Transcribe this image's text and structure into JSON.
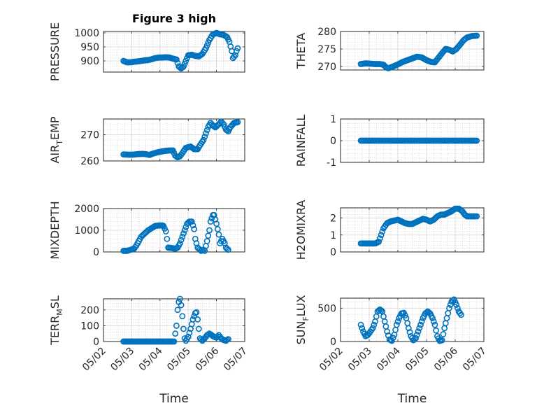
{
  "chart_data": [
    {
      "name": "PRESSURE",
      "type": "scatter",
      "title": "Figure 3 high",
      "ylabel": "PRESSURE",
      "xlabel": "",
      "ylim": [
        860,
        1005
      ],
      "yticks": [
        900,
        950,
        1000
      ],
      "points": [
        [
          "05/02 17:00",
          900
        ],
        [
          "05/02 20:00",
          895
        ],
        [
          "05/02 23:00",
          895
        ],
        [
          "05/03 02:00",
          897
        ],
        [
          "05/03 05:00",
          898
        ],
        [
          "05/03 08:00",
          900
        ],
        [
          "05/03 11:00",
          902
        ],
        [
          "05/03 14:00",
          903
        ],
        [
          "05/03 17:00",
          906
        ],
        [
          "05/03 20:00",
          910
        ],
        [
          "05/03 23:00",
          912
        ],
        [
          "05/04 02:00",
          912
        ],
        [
          "05/04 05:00",
          913
        ],
        [
          "05/04 08:00",
          912
        ],
        [
          "05/04 11:00",
          908
        ],
        [
          "05/04 14:00",
          905
        ],
        [
          "05/04 16:00",
          880
        ],
        [
          "05/04 18:00",
          873
        ],
        [
          "05/04 20:00",
          880
        ],
        [
          "05/04 22:00",
          900
        ],
        [
          "05/05 00:00",
          920
        ],
        [
          "05/05 03:00",
          922
        ],
        [
          "05/05 06:00",
          918
        ],
        [
          "05/05 09:00",
          916
        ],
        [
          "05/05 12:00",
          925
        ],
        [
          "05/05 15:00",
          945
        ],
        [
          "05/05 18:00",
          975
        ],
        [
          "05/05 21:00",
          995
        ],
        [
          "05/06 00:00",
          1000
        ],
        [
          "05/06 03:00",
          995
        ],
        [
          "05/06 06:00",
          993
        ],
        [
          "05/06 09:00",
          985
        ],
        [
          "05/06 11:00",
          968
        ],
        [
          "05/06 13:00",
          935
        ],
        [
          "05/06 14:00",
          910
        ],
        [
          "05/06 16:00",
          920
        ],
        [
          "05/06 17:00",
          935
        ],
        [
          "05/06 18:00",
          945
        ]
      ]
    },
    {
      "name": "THETA",
      "type": "scatter",
      "title": "",
      "ylabel": "THETA",
      "xlabel": "",
      "ylim": [
        269,
        280
      ],
      "yticks": [
        270,
        275,
        280
      ],
      "points": [
        [
          "05/02 17:00",
          270.7
        ],
        [
          "05/02 21:00",
          270.9
        ],
        [
          "05/03 01:00",
          270.8
        ],
        [
          "05/03 05:00",
          270.7
        ],
        [
          "05/03 09:00",
          270.7
        ],
        [
          "05/03 12:00",
          270.5
        ],
        [
          "05/03 14:00",
          269.8
        ],
        [
          "05/03 16:00",
          269.5
        ],
        [
          "05/03 20:00",
          270.0
        ],
        [
          "05/04 00:00",
          270.6
        ],
        [
          "05/04 04:00",
          271.3
        ],
        [
          "05/04 08:00",
          271.8
        ],
        [
          "05/04 12:00",
          272.3
        ],
        [
          "05/04 16:00",
          272.8
        ],
        [
          "05/04 20:00",
          272.6
        ],
        [
          "05/05 00:00",
          271.8
        ],
        [
          "05/05 04:00",
          271.3
        ],
        [
          "05/05 07:00",
          271.2
        ],
        [
          "05/05 10:00",
          272.5
        ],
        [
          "05/05 13:00",
          273.8
        ],
        [
          "05/05 16:00",
          275.0
        ],
        [
          "05/05 19:00",
          274.8
        ],
        [
          "05/05 22:00",
          274.3
        ],
        [
          "05/06 01:00",
          275.0
        ],
        [
          "05/06 04:00",
          276.2
        ],
        [
          "05/06 07:00",
          277.5
        ],
        [
          "05/06 10:00",
          278.3
        ],
        [
          "05/06 14:00",
          278.7
        ],
        [
          "05/06 18:00",
          278.8
        ]
      ]
    },
    {
      "name": "AIR_TEMP",
      "type": "scatter",
      "title": "",
      "ylabel": "AIR_TEMP",
      "xlabel": "",
      "ylim": [
        260,
        276
      ],
      "yticks": [
        260,
        270
      ],
      "points": [
        [
          "05/02 17:00",
          262.5
        ],
        [
          "05/02 21:00",
          262.4
        ],
        [
          "05/03 01:00",
          262.4
        ],
        [
          "05/03 05:00",
          262.6
        ],
        [
          "05/03 09:00",
          262.7
        ],
        [
          "05/03 12:00",
          262.6
        ],
        [
          "05/03 15:00",
          262.3
        ],
        [
          "05/03 18:00",
          262.8
        ],
        [
          "05/03 21:00",
          263.2
        ],
        [
          "05/04 00:00",
          263.5
        ],
        [
          "05/04 04:00",
          263.8
        ],
        [
          "05/04 08:00",
          264.0
        ],
        [
          "05/04 11:00",
          264.0
        ],
        [
          "05/04 13:00",
          262.0
        ],
        [
          "05/04 15:00",
          261.4
        ],
        [
          "05/04 17:00",
          261.8
        ],
        [
          "05/04 19:00",
          263.0
        ],
        [
          "05/04 22:00",
          265.0
        ],
        [
          "05/05 02:00",
          265.5
        ],
        [
          "05/05 05:00",
          264.5
        ],
        [
          "05/05 08:00",
          264.5
        ],
        [
          "05/05 10:00",
          266.0
        ],
        [
          "05/05 13:00",
          268.0
        ],
        [
          "05/05 15:00",
          270.5
        ],
        [
          "05/05 17:00",
          273.0
        ],
        [
          "05/05 19:00",
          274.5
        ],
        [
          "05/05 21:00",
          273.5
        ],
        [
          "05/05 23:00",
          272.8
        ],
        [
          "05/06 02:00",
          274.0
        ],
        [
          "05/06 04:00",
          275.0
        ],
        [
          "05/06 06:00",
          274.0
        ],
        [
          "05/06 08:00",
          272.0
        ],
        [
          "05/06 10:00",
          271.3
        ],
        [
          "05/06 12:00",
          273.0
        ],
        [
          "05/06 15:00",
          274.5
        ],
        [
          "05/06 18:00",
          274.8
        ]
      ]
    },
    {
      "name": "RAINFALL",
      "type": "scatter",
      "title": "",
      "ylabel": "RAINFALL",
      "xlabel": "",
      "ylim": [
        -1,
        1
      ],
      "yticks": [
        -1,
        0,
        1
      ],
      "points": [
        [
          "05/02 17:00",
          0
        ],
        [
          "05/03 00:00",
          0
        ],
        [
          "05/03 08:00",
          0
        ],
        [
          "05/03 16:00",
          0
        ],
        [
          "05/04 00:00",
          0
        ],
        [
          "05/04 08:00",
          0
        ],
        [
          "05/04 16:00",
          0
        ],
        [
          "05/05 00:00",
          0
        ],
        [
          "05/05 08:00",
          0
        ],
        [
          "05/05 16:00",
          0
        ],
        [
          "05/06 00:00",
          0
        ],
        [
          "05/06 08:00",
          0
        ],
        [
          "05/06 16:00",
          0
        ],
        [
          "05/06 18:00",
          0
        ]
      ]
    },
    {
      "name": "MIXDEPTH",
      "type": "scatter",
      "title": "",
      "ylabel": "MIXDEPTH",
      "xlabel": "",
      "ylim": [
        0,
        2000
      ],
      "yticks": [
        0,
        1000,
        2000
      ],
      "points": [
        [
          "05/02 17:00",
          50
        ],
        [
          "05/02 20:00",
          50
        ],
        [
          "05/02 23:00",
          100
        ],
        [
          "05/03 02:00",
          150
        ],
        [
          "05/03 04:00",
          300
        ],
        [
          "05/03 06:00",
          500
        ],
        [
          "05/03 08:00",
          700
        ],
        [
          "05/03 11:00",
          850
        ],
        [
          "05/03 14:00",
          1000
        ],
        [
          "05/03 17:00",
          1100
        ],
        [
          "05/03 20:00",
          1200
        ],
        [
          "05/03 23:00",
          1220
        ],
        [
          "05/04 02:00",
          1220
        ],
        [
          "05/04 03:00",
          1200
        ],
        [
          "05/04 05:00",
          950
        ],
        [
          "05/04 06:00",
          600
        ],
        [
          "05/04 07:00",
          200
        ],
        [
          "05/04 10:00",
          180
        ],
        [
          "05/04 13:00",
          150
        ],
        [
          "05/04 15:00",
          200
        ],
        [
          "05/04 17:00",
          400
        ],
        [
          "05/04 19:00",
          700
        ],
        [
          "05/04 21:00",
          1000
        ],
        [
          "05/04 23:00",
          1300
        ],
        [
          "05/05 01:00",
          1400
        ],
        [
          "05/05 03:00",
          1400
        ],
        [
          "05/05 05:00",
          1050
        ],
        [
          "05/05 06:00",
          600
        ],
        [
          "05/05 08:00",
          200
        ],
        [
          "05/05 11:00",
          50
        ],
        [
          "05/05 13:00",
          100
        ],
        [
          "05/05 14:00",
          50
        ],
        [
          "05/05 16:00",
          500
        ],
        [
          "05/05 18:00",
          1000
        ],
        [
          "05/05 19:00",
          1400
        ],
        [
          "05/05 21:00",
          1700
        ],
        [
          "05/05 22:00",
          1700
        ],
        [
          "05/06 00:00",
          1300
        ],
        [
          "05/06 02:00",
          800
        ],
        [
          "05/06 03:00",
          400
        ],
        [
          "05/06 05:00",
          600
        ],
        [
          "05/06 07:00",
          400
        ],
        [
          "05/06 08:00",
          200
        ],
        [
          "05/06 10:00",
          100
        ]
      ]
    },
    {
      "name": "H2OMIXRA",
      "type": "scatter",
      "title": "",
      "ylabel": "H2OMIXRA",
      "xlabel": "",
      "ylim": [
        0,
        2.6
      ],
      "yticks": [
        0,
        1,
        2
      ],
      "points": [
        [
          "05/02 17:00",
          0.5
        ],
        [
          "05/02 21:00",
          0.5
        ],
        [
          "05/03 01:00",
          0.5
        ],
        [
          "05/03 05:00",
          0.5
        ],
        [
          "05/03 08:00",
          0.6
        ],
        [
          "05/03 10:00",
          1.0
        ],
        [
          "05/03 12:00",
          1.4
        ],
        [
          "05/03 15:00",
          1.7
        ],
        [
          "05/03 18:00",
          1.8
        ],
        [
          "05/03 21:00",
          1.85
        ],
        [
          "05/04 00:00",
          1.9
        ],
        [
          "05/04 03:00",
          1.8
        ],
        [
          "05/04 06:00",
          1.7
        ],
        [
          "05/04 09:00",
          1.65
        ],
        [
          "05/04 12:00",
          1.65
        ],
        [
          "05/04 15:00",
          1.75
        ],
        [
          "05/04 18:00",
          1.85
        ],
        [
          "05/04 21:00",
          1.95
        ],
        [
          "05/05 00:00",
          1.9
        ],
        [
          "05/05 03:00",
          1.8
        ],
        [
          "05/05 06:00",
          1.9
        ],
        [
          "05/05 09:00",
          2.1
        ],
        [
          "05/05 12:00",
          2.2
        ],
        [
          "05/05 15:00",
          2.2
        ],
        [
          "05/05 18:00",
          2.3
        ],
        [
          "05/05 21:00",
          2.4
        ],
        [
          "05/06 00:00",
          2.55
        ],
        [
          "05/06 03:00",
          2.55
        ],
        [
          "05/06 06:00",
          2.4
        ],
        [
          "05/06 08:00",
          2.2
        ],
        [
          "05/06 10:00",
          2.1
        ],
        [
          "05/06 14:00",
          2.1
        ],
        [
          "05/06 18:00",
          2.1
        ]
      ]
    },
    {
      "name": "TERR_MSL",
      "type": "scatter",
      "title": "",
      "ylabel": "TERR_MSL",
      "xlabel": "Time",
      "ylim": [
        0,
        270
      ],
      "yticks": [
        0,
        100,
        200
      ],
      "points": [
        [
          "05/02 17:00",
          0
        ],
        [
          "05/03 00:00",
          0
        ],
        [
          "05/03 08:00",
          0
        ],
        [
          "05/03 16:00",
          0
        ],
        [
          "05/04 00:00",
          0
        ],
        [
          "05/04 08:00",
          0
        ],
        [
          "05/04 12:00",
          0
        ],
        [
          "05/04 14:00",
          100
        ],
        [
          "05/04 15:00",
          200
        ],
        [
          "05/04 16:00",
          250
        ],
        [
          "05/04 17:00",
          270
        ],
        [
          "05/04 18:00",
          230
        ],
        [
          "05/04 19:00",
          160
        ],
        [
          "05/04 20:00",
          80
        ],
        [
          "05/04 21:00",
          20
        ],
        [
          "05/04 22:00",
          5
        ],
        [
          "05/05 00:00",
          30
        ],
        [
          "05/05 02:00",
          80
        ],
        [
          "05/05 04:00",
          140
        ],
        [
          "05/05 06:00",
          180
        ],
        [
          "05/05 07:00",
          185
        ],
        [
          "05/05 08:00",
          140
        ],
        [
          "05/05 09:00",
          80
        ],
        [
          "05/05 10:00",
          20
        ],
        [
          "05/05 12:00",
          5
        ],
        [
          "05/05 14:00",
          20
        ],
        [
          "05/05 16:00",
          40
        ],
        [
          "05/05 18:00",
          50
        ],
        [
          "05/05 20:00",
          40
        ],
        [
          "05/05 22:00",
          30
        ],
        [
          "05/06 00:00",
          25
        ],
        [
          "05/06 02:00",
          40
        ],
        [
          "05/06 04:00",
          20
        ],
        [
          "05/06 06:00",
          10
        ],
        [
          "05/06 08:00",
          5
        ],
        [
          "05/06 10:00",
          15
        ]
      ]
    },
    {
      "name": "SUN_FLUX",
      "type": "scatter",
      "title": "",
      "ylabel": "SUN_FLUX",
      "xlabel": "Time",
      "ylim": [
        0,
        650
      ],
      "yticks": [
        0,
        500
      ],
      "points": [
        [
          "05/02 17:00",
          250
        ],
        [
          "05/02 19:00",
          150
        ],
        [
          "05/02 21:00",
          80
        ],
        [
          "05/02 23:00",
          100
        ],
        [
          "05/03 01:00",
          150
        ],
        [
          "05/03 03:00",
          200
        ],
        [
          "05/03 05:00",
          300
        ],
        [
          "05/03 07:00",
          450
        ],
        [
          "05/03 09:00",
          480
        ],
        [
          "05/03 11:00",
          450
        ],
        [
          "05/03 13:00",
          300
        ],
        [
          "05/03 15:00",
          150
        ],
        [
          "05/03 17:00",
          30
        ],
        [
          "05/03 19:00",
          10
        ],
        [
          "05/03 21:00",
          100
        ],
        [
          "05/03 23:00",
          250
        ],
        [
          "05/04 01:00",
          350
        ],
        [
          "05/04 03:00",
          420
        ],
        [
          "05/04 05:00",
          430
        ],
        [
          "05/04 07:00",
          350
        ],
        [
          "05/04 09:00",
          200
        ],
        [
          "05/04 11:00",
          80
        ],
        [
          "05/04 13:00",
          20
        ],
        [
          "05/04 15:00",
          50
        ],
        [
          "05/04 17:00",
          150
        ],
        [
          "05/04 19:00",
          250
        ],
        [
          "05/04 21:00",
          350
        ],
        [
          "05/04 23:00",
          420
        ],
        [
          "05/05 01:00",
          450
        ],
        [
          "05/05 03:00",
          420
        ],
        [
          "05/05 05:00",
          350
        ],
        [
          "05/05 07:00",
          250
        ],
        [
          "05/05 09:00",
          80
        ],
        [
          "05/05 11:00",
          10
        ],
        [
          "05/05 13:00",
          20
        ],
        [
          "05/05 15:00",
          200
        ],
        [
          "05/05 17:00",
          350
        ],
        [
          "05/05 19:00",
          500
        ],
        [
          "05/05 21:00",
          600
        ],
        [
          "05/05 23:00",
          630
        ],
        [
          "05/06 01:00",
          550
        ],
        [
          "05/06 03:00",
          450
        ],
        [
          "05/06 05:00",
          400
        ]
      ]
    }
  ],
  "xaxis": {
    "tick_labels": [
      "05/02",
      "05/03",
      "05/04",
      "05/05",
      "05/06",
      "05/07"
    ],
    "tick_dates": [
      "05/02 00:00",
      "05/03 00:00",
      "05/04 00:00",
      "05/05 00:00",
      "05/06 00:00",
      "05/07 00:00"
    ],
    "range": [
      "05/02 00:00",
      "05/07 00:00"
    ]
  },
  "style": {
    "marker_color": "#0072bd",
    "marker": "open-circle",
    "grid": "on",
    "minor_grid": "on"
  }
}
